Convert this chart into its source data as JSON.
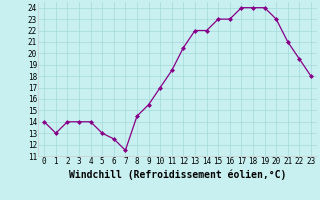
{
  "x": [
    0,
    1,
    2,
    3,
    4,
    5,
    6,
    7,
    8,
    9,
    10,
    11,
    12,
    13,
    14,
    15,
    16,
    17,
    18,
    19,
    20,
    21,
    22,
    23
  ],
  "y": [
    14,
    13,
    14,
    14,
    14,
    13,
    12.5,
    11.5,
    14.5,
    15.5,
    17,
    18.5,
    20.5,
    22,
    22,
    23,
    23,
    24,
    24,
    24,
    23,
    21,
    19.5,
    18
  ],
  "xlim": [
    -0.5,
    23.5
  ],
  "ylim": [
    11,
    24.5
  ],
  "yticks": [
    11,
    12,
    13,
    14,
    15,
    16,
    17,
    18,
    19,
    20,
    21,
    22,
    23,
    24
  ],
  "xticks": [
    0,
    1,
    2,
    3,
    4,
    5,
    6,
    7,
    8,
    9,
    10,
    11,
    12,
    13,
    14,
    15,
    16,
    17,
    18,
    19,
    20,
    21,
    22,
    23
  ],
  "xlabel": "Windchill (Refroidissement éolien,°C)",
  "line_color": "#880088",
  "marker": "D",
  "marker_size": 2.0,
  "bg_color": "#c8f0f0",
  "grid_color": "#aadddd",
  "tick_label_fontsize": 5.5,
  "xlabel_fontsize": 7.0,
  "axis_bg": "#c8f0f0"
}
